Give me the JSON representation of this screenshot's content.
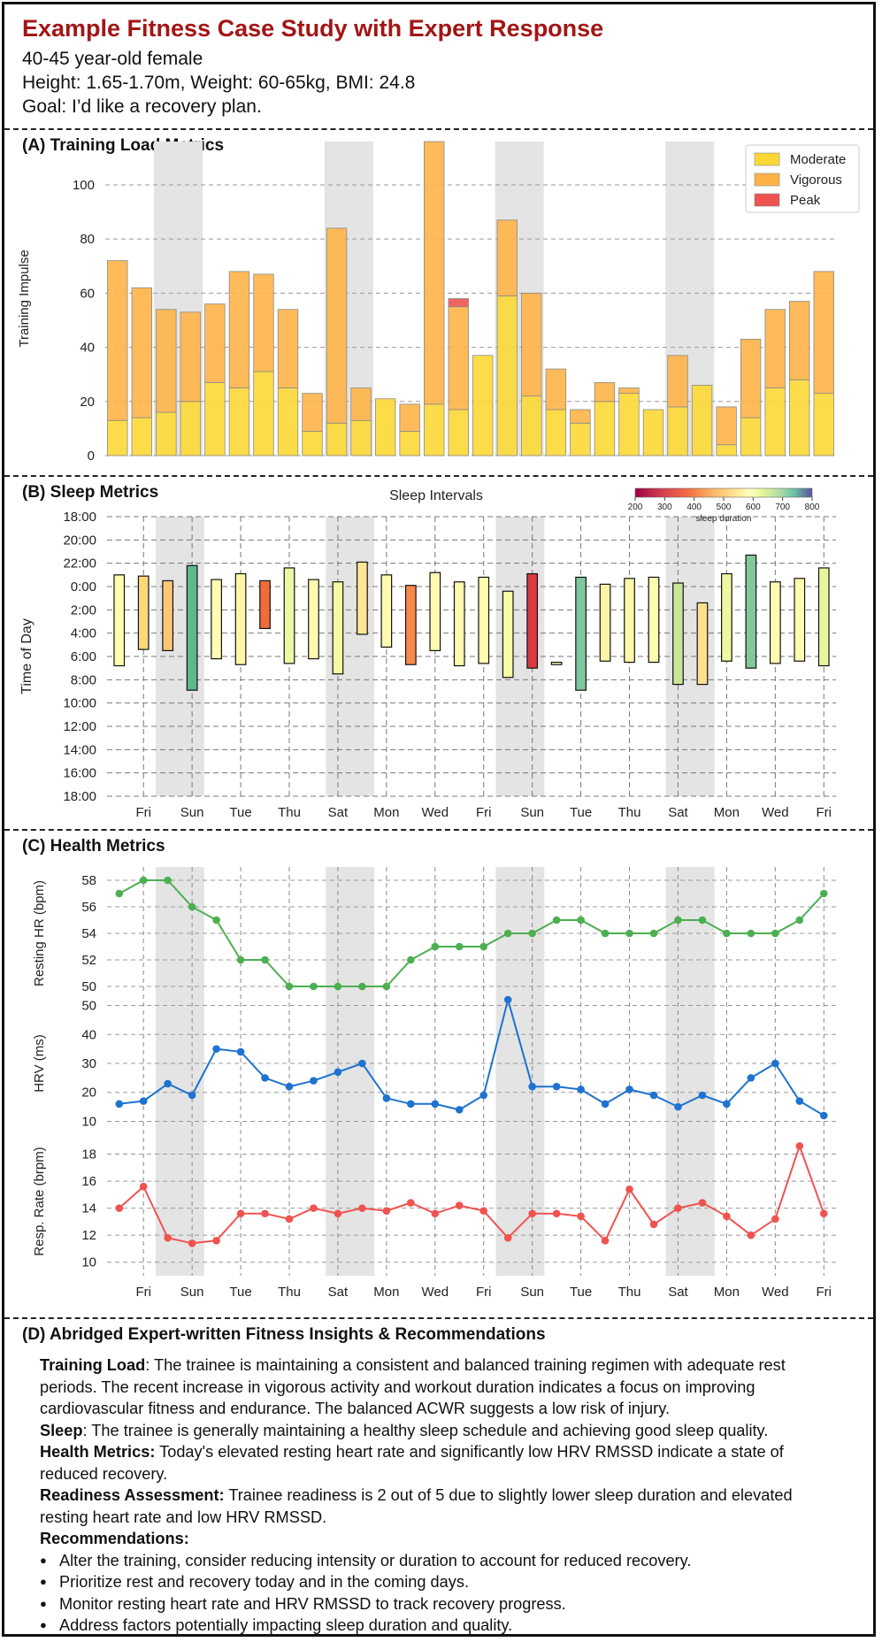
{
  "header": {
    "title": "Example Fitness Case Study with Expert Response",
    "line1": "40-45 year-old female",
    "line2": "Height: 1.65-1.70m, Weight: 60-65kg, BMI: 24.8",
    "line3": "Goal: I’d like a recovery plan."
  },
  "panels": {
    "a": "(A) Training Load Metrics",
    "b": "(B) Sleep Metrics",
    "c": "(C) Health Metrics",
    "d": "(D) Abridged Expert-written Fitness Insights & Recommendations"
  },
  "chart_data": [
    {
      "type": "bar",
      "stacked": true,
      "ylabel": "Training Impulse",
      "ylim": [
        0,
        116
      ],
      "yticks": [
        0,
        20,
        40,
        60,
        80,
        100
      ],
      "grid": true,
      "legend": "top-right",
      "weekend_shading": [
        [
          2,
          3
        ],
        [
          9,
          10
        ],
        [
          16,
          17
        ],
        [
          23,
          24
        ]
      ],
      "series": [
        {
          "name": "Moderate",
          "color": "#fdd835",
          "values": [
            13,
            14,
            16,
            20,
            27,
            25,
            31,
            25,
            9,
            12,
            13,
            21,
            9,
            19,
            17,
            37,
            59,
            22,
            17,
            12,
            20,
            23,
            17,
            18,
            26,
            4,
            14,
            25,
            28,
            23
          ]
        },
        {
          "name": "Vigorous",
          "color": "#ffb347",
          "values": [
            59,
            48,
            38,
            33,
            29,
            43,
            36,
            29,
            14,
            72,
            12,
            0,
            10,
            97,
            38,
            0,
            28,
            38,
            15,
            5,
            7,
            2,
            0,
            19,
            0,
            14,
            29,
            29,
            29,
            45
          ]
        },
        {
          "name": "Peak",
          "color": "#ef5350",
          "values": [
            0,
            0,
            0,
            0,
            0,
            0,
            0,
            0,
            0,
            0,
            0,
            0,
            0,
            0,
            3,
            0,
            0,
            0,
            0,
            0,
            0,
            0,
            0,
            0,
            0,
            0,
            0,
            0,
            0,
            0
          ]
        }
      ]
    },
    {
      "type": "bar",
      "subtype": "floating-intervals",
      "title": "Sleep Intervals",
      "ylabel": "Time of Day",
      "yticks": [
        "18:00",
        "20:00",
        "22:00",
        "0:00",
        "2:00",
        "4:00",
        "6:00",
        "8:00",
        "10:00",
        "12:00",
        "14:00",
        "16:00",
        "18:00"
      ],
      "xticks": [
        "Fri",
        "Sun",
        "Tue",
        "Thu",
        "Sat",
        "Mon",
        "Wed",
        "Fri",
        "Sun",
        "Tue",
        "Thu",
        "Sat",
        "Mon",
        "Wed",
        "Fri"
      ],
      "colorbar": {
        "label": "sleep duration",
        "ticks": [
          200,
          300,
          400,
          500,
          600,
          700,
          800
        ]
      },
      "weekend_shading": [
        [
          2,
          3
        ],
        [
          9,
          10
        ],
        [
          16,
          17
        ],
        [
          23,
          24
        ]
      ],
      "intervals_hours_after_18": [
        [
          5,
          12.8
        ],
        [
          5.1,
          11.4
        ],
        [
          5.5,
          11.5
        ],
        [
          4.2,
          14.9
        ],
        [
          5.4,
          12.2
        ],
        [
          4.9,
          12.7
        ],
        [
          5.5,
          9.6
        ],
        [
          4.4,
          12.6
        ],
        [
          5.4,
          12.2
        ],
        [
          5.6,
          13.5
        ],
        [
          3.9,
          10.1
        ],
        [
          5,
          11.2
        ],
        [
          5.9,
          12.7
        ],
        [
          4.8,
          11.5
        ],
        [
          5.6,
          12.8
        ],
        [
          5.2,
          12.6
        ],
        [
          6.4,
          13.8
        ],
        [
          4.9,
          13
        ],
        [
          12.5,
          12.7
        ],
        [
          5.2,
          14.9
        ],
        [
          5.8,
          12.4
        ],
        [
          5.3,
          12.5
        ],
        [
          5.2,
          12.5
        ],
        [
          5.7,
          14.4
        ],
        [
          7.4,
          14.4
        ],
        [
          4.9,
          12.4
        ],
        [
          3.3,
          13
        ],
        [
          5.6,
          12.6
        ],
        [
          5.3,
          12.4
        ],
        [
          4.4,
          12.8
        ]
      ],
      "bar_colors": [
        "#fffdb0",
        "#fed97a",
        "#fdc777",
        "#5fb888",
        "#fffdb5",
        "#fff6a8",
        "#f06d3b",
        "#ecf8a3",
        "#fffab0",
        "#f4fa9f",
        "#fde795",
        "#fffbae",
        "#f7894b",
        "#fffcb2",
        "#fffaaf",
        "#fffcaf",
        "#f6fca3",
        "#d93b3f",
        "#fffcb0",
        "#7dc89d",
        "#fff4a5",
        "#fff8ac",
        "#fffbaf",
        "#c9e597",
        "#fee08e",
        "#eef89f",
        "#82c89a",
        "#fffcb0",
        "#fffbaf",
        "#e7f59d"
      ]
    },
    {
      "type": "line",
      "ylabel": "Resting HR (bpm)",
      "ylim": [
        49,
        59
      ],
      "yticks": [
        50,
        52,
        54,
        56,
        58
      ],
      "series": [
        {
          "name": "",
          "color": "#4caf50",
          "values": [
            57,
            58,
            58,
            56,
            55,
            52,
            52,
            50,
            50,
            50,
            50,
            50,
            52,
            53,
            53,
            53,
            54,
            54,
            55,
            55,
            54,
            54,
            54,
            55,
            55,
            54,
            54,
            54,
            55,
            57
          ]
        }
      ]
    },
    {
      "type": "line",
      "ylabel": "HRV (ms)",
      "ylim": [
        8,
        52
      ],
      "yticks": [
        10,
        20,
        30,
        40,
        50
      ],
      "series": [
        {
          "name": "",
          "color": "#1e73d0",
          "values": [
            16,
            17,
            23,
            19,
            35,
            34,
            25,
            22,
            24,
            27,
            30,
            18,
            16,
            16,
            14,
            19,
            52,
            22,
            22,
            21,
            16,
            21,
            19,
            15,
            19,
            16,
            25,
            30,
            17,
            12
          ]
        }
      ]
    },
    {
      "type": "line",
      "ylabel": "Resp. Rate (brpm)",
      "ylim": [
        9,
        20
      ],
      "yticks": [
        10,
        12,
        14,
        16,
        18
      ],
      "xticks": [
        "Fri",
        "Sun",
        "Tue",
        "Thu",
        "Sat",
        "Mon",
        "Wed",
        "Fri",
        "Sun",
        "Tue",
        "Thu",
        "Sat",
        "Mon",
        "Wed",
        "Fri"
      ],
      "series": [
        {
          "name": "",
          "color": "#ef5350",
          "values": [
            14,
            15.6,
            11.8,
            11.4,
            11.6,
            13.6,
            13.6,
            13.2,
            14,
            13.6,
            14,
            13.8,
            14.4,
            13.6,
            14.2,
            13.8,
            11.8,
            13.6,
            13.6,
            13.4,
            11.6,
            15.4,
            12.8,
            14,
            14.4,
            13.4,
            12,
            13.2,
            18.6,
            13.6
          ]
        }
      ]
    }
  ],
  "insights": {
    "training_label": "Training Load",
    "training_text": ": The trainee is maintaining a consistent and balanced training regimen with adequate rest periods. The recent increase in vigorous activity and workout duration indicates a focus on improving cardiovascular fitness and endurance. The balanced ACWR suggests a low risk of injury.",
    "sleep_label": "Sleep",
    "sleep_text": ": The trainee is generally maintaining a healthy sleep schedule and achieving good sleep quality.",
    "health_label": "Health Metrics:",
    "health_text": " Today's elevated resting heart rate and significantly low HRV RMSSD indicate a state of reduced recovery.",
    "readiness_label": "Readiness Assessment:",
    "readiness_text": " Trainee readiness is 2 out of 5 due to slightly lower sleep duration and elevated resting heart rate and low HRV RMSSD.",
    "recs_label": "Recommendations:",
    "recs": [
      "Alter the training, consider reducing intensity or duration to account for reduced recovery.",
      "Prioritize rest and recovery today and in the coming days.",
      "Monitor resting heart rate and HRV RMSSD to track recovery progress.",
      "Address factors potentially impacting sleep duration and quality."
    ]
  }
}
